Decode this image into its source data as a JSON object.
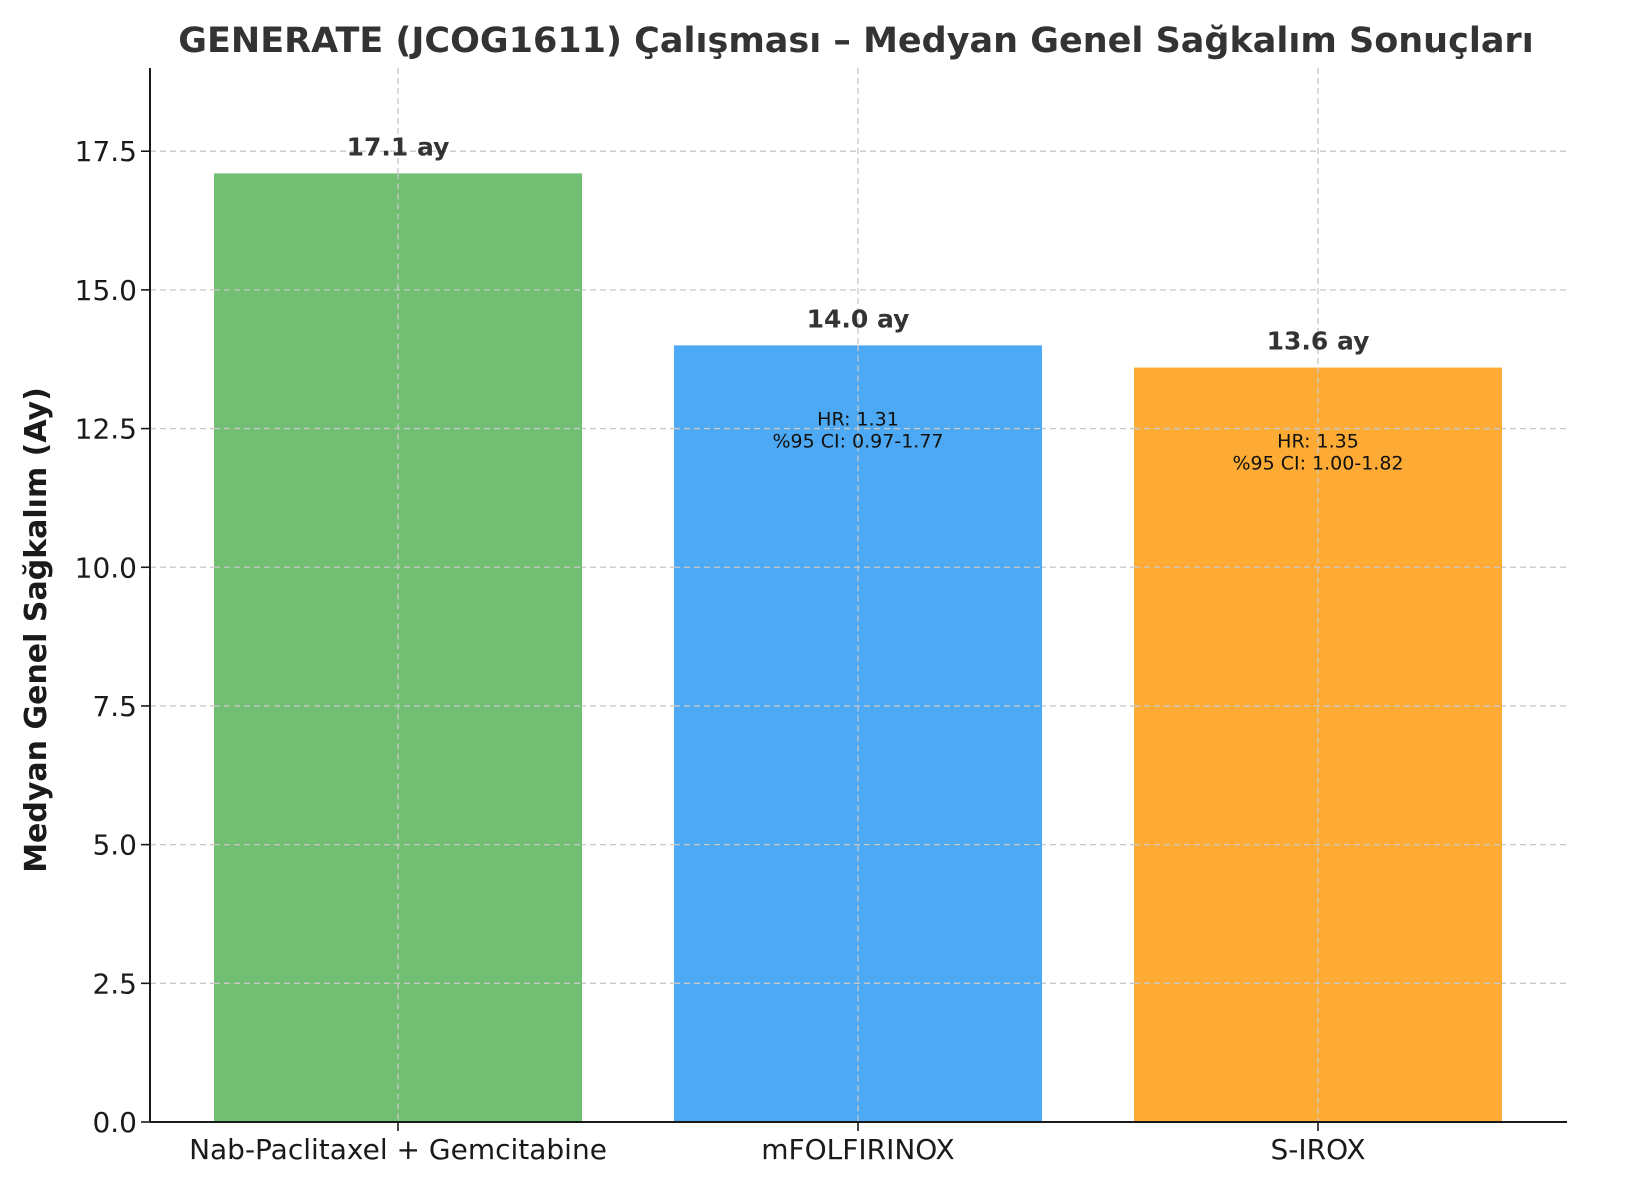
{
  "chart_data": {
    "type": "bar",
    "title": "GENERATE (JCOG1611) Çalışması – Medyan Genel Sağkalım Sonuçları",
    "xlabel": "",
    "ylabel": "Medyan Genel Sağkalım (Ay)",
    "ylim": [
      0,
      19
    ],
    "yticks": [
      "0.0",
      "2.5",
      "5.0",
      "7.5",
      "10.0",
      "12.5",
      "15.0",
      "17.5"
    ],
    "grid": true,
    "categories": [
      "Nab-Paclitaxel + Gemcitabine",
      "mFOLFIRINOX",
      "S-IROX"
    ],
    "values": [
      17.1,
      14.0,
      13.6
    ],
    "colors": [
      "#72bf73",
      "#4da9f3",
      "#fdab35"
    ],
    "value_labels": [
      "17.1 ay",
      "14.0 ay",
      "13.6 ay"
    ],
    "annotations": [
      null,
      {
        "hr": "HR: 1.31",
        "ci": "%95 CI: 0.97-1.77"
      },
      {
        "hr": "HR: 1.35",
        "ci": "%95 CI: 1.00-1.82"
      }
    ]
  }
}
